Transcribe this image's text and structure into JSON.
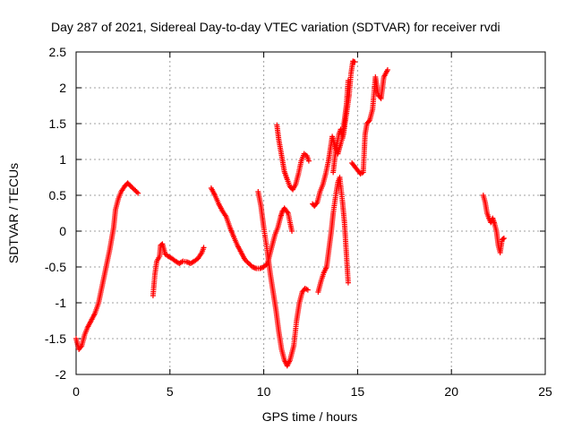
{
  "chart_data": {
    "type": "scatter",
    "title": "Day 287 of 2021, Sidereal Day-to-day VTEC variation (SDTVAR) for receiver rvdi",
    "xlabel": "GPS time / hours",
    "ylabel": "SDTVAR / TECUs",
    "xlim": [
      0,
      25
    ],
    "ylim": [
      -2,
      2.5
    ],
    "x_ticks": [
      0,
      5,
      10,
      15,
      20,
      25
    ],
    "x_tick_labels": [
      "0",
      "5",
      "10",
      "15",
      "20",
      "25"
    ],
    "y_ticks": [
      -2,
      -1.5,
      -1,
      -0.5,
      0,
      0.5,
      1,
      1.5,
      2,
      2.5
    ],
    "y_tick_labels": [
      "-2",
      "-1.5",
      "-1",
      "-0.5",
      "0",
      "0.5",
      "1",
      "1.5",
      "2",
      "2.5"
    ],
    "grid": true,
    "marker": "plus",
    "color": "#ff0000",
    "series": [
      {
        "segments": [
          [
            [
              0.0,
              -1.5
            ],
            [
              0.15,
              -1.65
            ],
            [
              0.3,
              -1.6
            ],
            [
              0.45,
              -1.45
            ],
            [
              0.6,
              -1.35
            ],
            [
              0.8,
              -1.25
            ],
            [
              1.0,
              -1.15
            ],
            [
              1.2,
              -1.0
            ],
            [
              1.4,
              -0.75
            ],
            [
              1.6,
              -0.5
            ],
            [
              1.8,
              -0.25
            ],
            [
              2.0,
              0.05
            ],
            [
              2.1,
              0.3
            ],
            [
              2.25,
              0.45
            ],
            [
              2.4,
              0.55
            ],
            [
              2.6,
              0.63
            ],
            [
              2.75,
              0.67
            ],
            [
              2.9,
              0.63
            ],
            [
              3.1,
              0.58
            ],
            [
              3.3,
              0.53
            ]
          ],
          [
            [
              4.1,
              -0.9
            ],
            [
              4.2,
              -0.6
            ],
            [
              4.3,
              -0.42
            ],
            [
              4.45,
              -0.35
            ],
            [
              4.5,
              -0.2
            ],
            [
              4.6,
              -0.18
            ],
            [
              4.75,
              -0.32
            ],
            [
              4.9,
              -0.35
            ],
            [
              5.1,
              -0.38
            ],
            [
              5.3,
              -0.42
            ],
            [
              5.5,
              -0.45
            ],
            [
              5.7,
              -0.42
            ],
            [
              5.9,
              -0.43
            ],
            [
              6.1,
              -0.45
            ],
            [
              6.3,
              -0.42
            ],
            [
              6.5,
              -0.38
            ],
            [
              6.7,
              -0.3
            ],
            [
              6.8,
              -0.23
            ]
          ],
          [
            [
              7.2,
              0.6
            ],
            [
              7.4,
              0.5
            ],
            [
              7.6,
              0.38
            ],
            [
              7.8,
              0.28
            ],
            [
              8.0,
              0.2
            ],
            [
              8.2,
              0.05
            ],
            [
              8.4,
              -0.08
            ],
            [
              8.6,
              -0.2
            ],
            [
              8.8,
              -0.3
            ],
            [
              9.0,
              -0.4
            ],
            [
              9.2,
              -0.45
            ],
            [
              9.4,
              -0.5
            ],
            [
              9.6,
              -0.52
            ],
            [
              9.8,
              -0.52
            ],
            [
              10.0,
              -0.5
            ],
            [
              10.2,
              -0.45
            ],
            [
              10.35,
              -0.3
            ],
            [
              10.5,
              -0.15
            ],
            [
              10.6,
              -0.05
            ],
            [
              10.75,
              0.05
            ],
            [
              10.9,
              0.2
            ],
            [
              11.0,
              0.28
            ],
            [
              11.1,
              0.32
            ],
            [
              11.3,
              0.25
            ],
            [
              11.4,
              0.12
            ],
            [
              11.5,
              0.0
            ]
          ],
          [
            [
              9.7,
              0.55
            ],
            [
              9.85,
              0.35
            ],
            [
              10.0,
              0.05
            ],
            [
              10.2,
              -0.3
            ],
            [
              10.35,
              -0.6
            ],
            [
              10.5,
              -0.85
            ],
            [
              10.65,
              -1.1
            ],
            [
              10.8,
              -1.4
            ],
            [
              10.95,
              -1.65
            ],
            [
              11.1,
              -1.8
            ],
            [
              11.25,
              -1.88
            ],
            [
              11.4,
              -1.8
            ],
            [
              11.6,
              -1.6
            ],
            [
              11.75,
              -1.25
            ],
            [
              11.9,
              -1.0
            ],
            [
              12.05,
              -0.85
            ],
            [
              12.2,
              -0.8
            ],
            [
              12.35,
              -0.82
            ]
          ],
          [
            [
              10.7,
              1.48
            ],
            [
              10.8,
              1.28
            ],
            [
              10.9,
              1.13
            ],
            [
              11.0,
              0.98
            ],
            [
              11.1,
              0.83
            ],
            [
              11.25,
              0.72
            ],
            [
              11.4,
              0.62
            ],
            [
              11.55,
              0.58
            ],
            [
              11.7,
              0.65
            ],
            [
              11.85,
              0.8
            ],
            [
              12.0,
              0.98
            ],
            [
              12.15,
              1.08
            ],
            [
              12.3,
              1.05
            ],
            [
              12.4,
              0.98
            ]
          ],
          [
            [
              12.6,
              0.38
            ],
            [
              12.7,
              0.35
            ],
            [
              12.85,
              0.4
            ],
            [
              13.0,
              0.55
            ],
            [
              13.15,
              0.65
            ],
            [
              13.3,
              0.8
            ],
            [
              13.45,
              0.98
            ],
            [
              13.55,
              1.15
            ],
            [
              13.65,
              1.32
            ],
            [
              13.8,
              1.18
            ],
            [
              13.95,
              1.08
            ],
            [
              14.1,
              1.22
            ],
            [
              14.25,
              1.35
            ],
            [
              14.4,
              1.62
            ],
            [
              14.55,
              1.9
            ],
            [
              14.65,
              2.2
            ],
            [
              14.75,
              2.37
            ],
            [
              14.85,
              2.36
            ]
          ],
          [
            [
              12.9,
              -0.85
            ],
            [
              13.05,
              -0.7
            ],
            [
              13.2,
              -0.58
            ],
            [
              13.35,
              -0.5
            ],
            [
              13.5,
              -0.2
            ],
            [
              13.6,
              0.0
            ],
            [
              13.7,
              0.25
            ],
            [
              13.85,
              0.52
            ],
            [
              13.95,
              0.68
            ],
            [
              14.05,
              0.75
            ],
            [
              14.2,
              0.4
            ],
            [
              14.3,
              0.12
            ],
            [
              14.4,
              -0.3
            ],
            [
              14.5,
              -0.72
            ]
          ],
          [
            [
              13.7,
              0.82
            ],
            [
              13.8,
              1.05
            ],
            [
              13.9,
              1.22
            ],
            [
              14.0,
              1.35
            ],
            [
              14.1,
              1.42
            ],
            [
              14.2,
              1.3
            ],
            [
              14.3,
              1.55
            ],
            [
              14.4,
              1.75
            ],
            [
              14.5,
              2.1
            ]
          ],
          [
            [
              14.7,
              0.95
            ],
            [
              14.85,
              0.9
            ],
            [
              15.0,
              0.85
            ],
            [
              15.15,
              0.8
            ],
            [
              15.3,
              0.82
            ],
            [
              15.4,
              1.35
            ],
            [
              15.5,
              1.5
            ],
            [
              15.65,
              1.55
            ],
            [
              15.8,
              1.7
            ],
            [
              15.95,
              2.15
            ],
            [
              16.1,
              1.9
            ],
            [
              16.25,
              1.85
            ],
            [
              16.4,
              2.15
            ],
            [
              16.6,
              2.25
            ]
          ],
          [
            [
              21.7,
              0.5
            ],
            [
              21.8,
              0.4
            ],
            [
              21.9,
              0.25
            ],
            [
              22.0,
              0.18
            ],
            [
              22.1,
              0.12
            ],
            [
              22.2,
              0.18
            ],
            [
              22.3,
              0.1
            ],
            [
              22.4,
              0.0
            ],
            [
              22.5,
              -0.2
            ],
            [
              22.6,
              -0.3
            ],
            [
              22.7,
              -0.12
            ],
            [
              22.8,
              -0.1
            ]
          ]
        ]
      }
    ]
  }
}
